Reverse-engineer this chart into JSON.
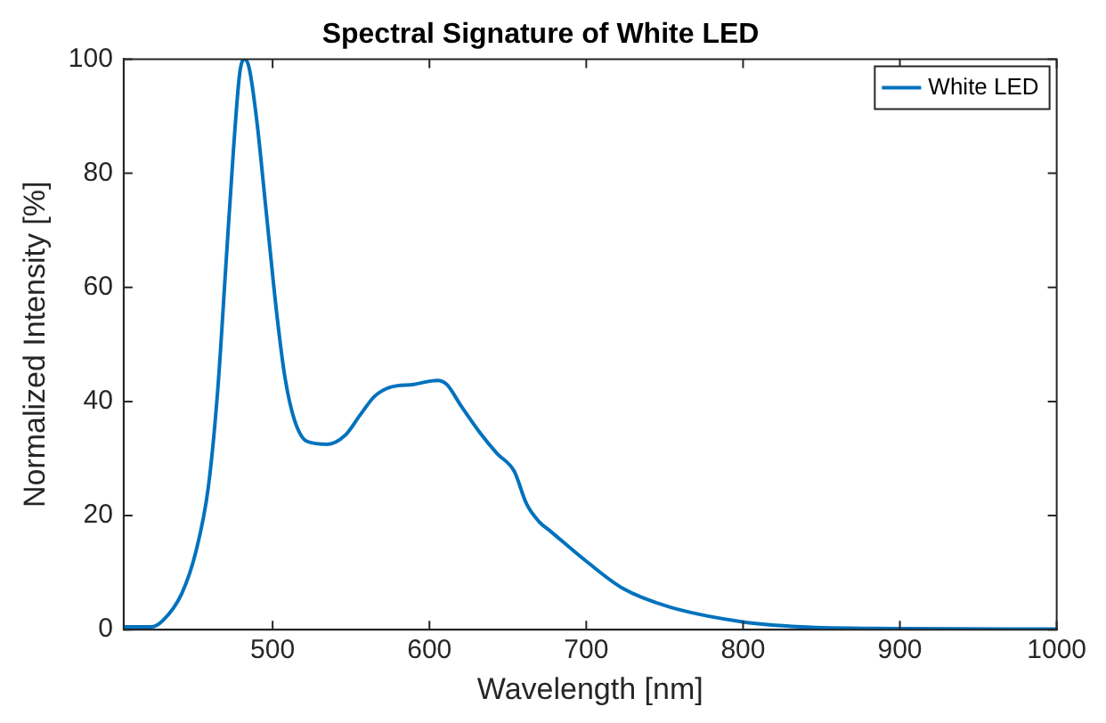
{
  "chart_data": {
    "type": "line",
    "title": "Spectral Signature of White LED",
    "xlabel": "Wavelength [nm]",
    "ylabel": "Normalized Intensity [%]",
    "xlim": [
      405,
      1000
    ],
    "xticks": [
      500,
      600,
      700,
      800,
      900,
      1000
    ],
    "ylim": [
      0,
      100
    ],
    "yticks": [
      0,
      20,
      40,
      60,
      80,
      100
    ],
    "grid": false,
    "legend": "top right",
    "marker": "none",
    "line_style": "solid",
    "series": [
      {
        "name": "White LED",
        "color": "#0072bd",
        "x": [
          405,
          423,
          430,
          442,
          451,
          459,
          465,
          470,
          475,
          479,
          482,
          485,
          490,
          496,
          503,
          508,
          514,
          522,
          535,
          546,
          556,
          565,
          575,
          590,
          605,
          611,
          620,
          632,
          643,
          654,
          662,
          670,
          677,
          700,
          723,
          753,
          799,
          837,
          900,
          1000
        ],
        "values": [
          0.5,
          0.5,
          1.6,
          6.3,
          13.6,
          25,
          42,
          63,
          84,
          97.5,
          100,
          98.5,
          89,
          73,
          54.5,
          44,
          36.7,
          33,
          32.5,
          34,
          37.7,
          40.9,
          42.5,
          43,
          43.7,
          43,
          39.3,
          34.6,
          30.9,
          27.8,
          22,
          18.9,
          17.3,
          12,
          7.3,
          4,
          1.4,
          0.5,
          0.2,
          0.1
        ]
      }
    ]
  }
}
